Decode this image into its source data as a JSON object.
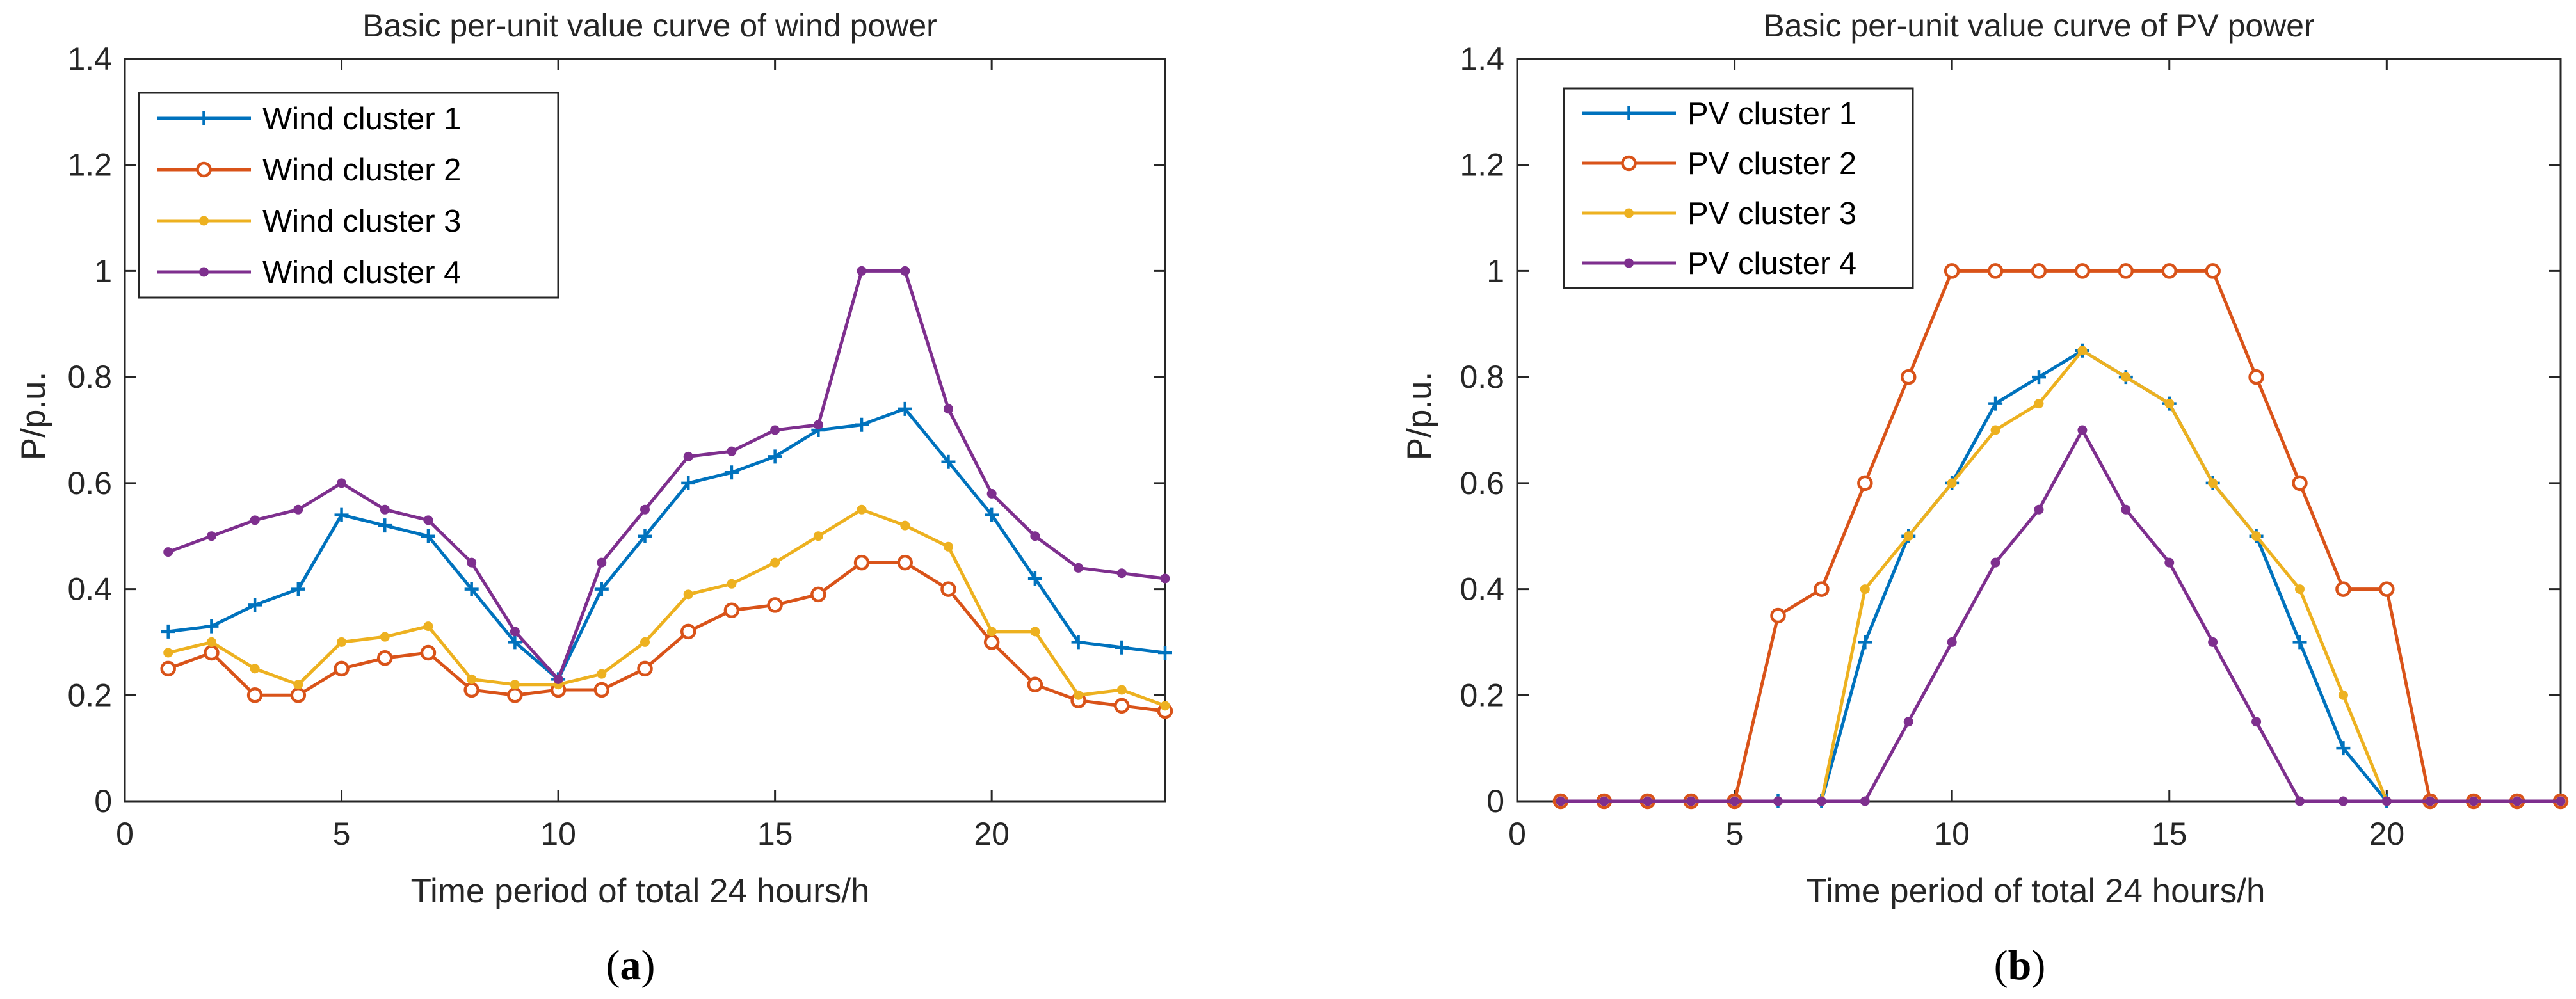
{
  "colors": {
    "series": [
      "#0072BD",
      "#D95319",
      "#EDB120",
      "#7E2F8E"
    ],
    "axis": "#262626",
    "background": "#ffffff"
  },
  "chart_data": [
    {
      "type": "line",
      "panel": "a",
      "title": "Basic per-unit value curve of wind power",
      "xlabel": "Time period of total 24 hours/h",
      "ylabel": "P/p.u.",
      "xlim": [
        0,
        24
      ],
      "ylim": [
        0,
        1.4
      ],
      "xticks": [
        0,
        5,
        10,
        15,
        20
      ],
      "xtick_labels": [
        "0",
        "5",
        "10",
        "15",
        "20"
      ],
      "yticks": [
        0,
        0.2,
        0.4,
        0.6,
        0.8,
        1,
        1.2,
        1.4
      ],
      "ytick_labels": [
        "0",
        "0.2",
        "0.4",
        "0.6",
        "0.8",
        "1",
        "1.2",
        "1.4"
      ],
      "legend_position": "top-left",
      "grid": false,
      "x": [
        1,
        2,
        3,
        4,
        5,
        6,
        7,
        8,
        9,
        10,
        11,
        12,
        13,
        14,
        15,
        16,
        17,
        18,
        19,
        20,
        21,
        22,
        23,
        24
      ],
      "series": [
        {
          "name": "Wind cluster 1",
          "marker": "plus",
          "values": [
            0.32,
            0.33,
            0.37,
            0.4,
            0.54,
            0.52,
            0.5,
            0.4,
            0.3,
            0.23,
            0.4,
            0.5,
            0.6,
            0.62,
            0.65,
            0.7,
            0.71,
            0.74,
            0.64,
            0.54,
            0.42,
            0.3,
            0.29,
            0.28
          ]
        },
        {
          "name": "Wind cluster 2",
          "marker": "circle",
          "values": [
            0.25,
            0.28,
            0.2,
            0.2,
            0.25,
            0.27,
            0.28,
            0.21,
            0.2,
            0.21,
            0.21,
            0.25,
            0.32,
            0.36,
            0.37,
            0.39,
            0.45,
            0.45,
            0.4,
            0.3,
            0.22,
            0.19,
            0.18,
            0.17
          ]
        },
        {
          "name": "Wind cluster 3",
          "marker": "dot",
          "values": [
            0.28,
            0.3,
            0.25,
            0.22,
            0.3,
            0.31,
            0.33,
            0.23,
            0.22,
            0.22,
            0.24,
            0.3,
            0.39,
            0.41,
            0.45,
            0.5,
            0.55,
            0.52,
            0.48,
            0.32,
            0.32,
            0.2,
            0.21,
            0.18
          ]
        },
        {
          "name": "Wind cluster 4",
          "marker": "dot",
          "values": [
            0.47,
            0.5,
            0.53,
            0.55,
            0.6,
            0.55,
            0.53,
            0.45,
            0.32,
            0.23,
            0.45,
            0.55,
            0.65,
            0.66,
            0.7,
            0.71,
            1.0,
            1.0,
            0.74,
            0.58,
            0.5,
            0.44,
            0.43,
            0.42
          ]
        }
      ]
    },
    {
      "type": "line",
      "panel": "b",
      "title": "Basic per-unit value curve of PV power",
      "xlabel": "Time period of total 24 hours/h",
      "ylabel": "P/p.u.",
      "xlim": [
        0,
        24
      ],
      "ylim": [
        0,
        1.4
      ],
      "xticks": [
        0,
        5,
        10,
        15,
        20
      ],
      "xtick_labels": [
        "0",
        "5",
        "10",
        "15",
        "20"
      ],
      "yticks": [
        0,
        0.2,
        0.4,
        0.6,
        0.8,
        1,
        1.2,
        1.4
      ],
      "ytick_labels": [
        "0",
        "0.2",
        "0.4",
        "0.6",
        "0.8",
        "1",
        "1.2",
        "1.4"
      ],
      "legend_position": "top-left",
      "grid": false,
      "x": [
        1,
        2,
        3,
        4,
        5,
        6,
        7,
        8,
        9,
        10,
        11,
        12,
        13,
        14,
        15,
        16,
        17,
        18,
        19,
        20,
        21,
        22,
        23,
        24
      ],
      "series": [
        {
          "name": "PV cluster 1",
          "marker": "plus",
          "values": [
            0,
            0,
            0,
            0,
            0,
            0,
            0,
            0.3,
            0.5,
            0.6,
            0.75,
            0.8,
            0.85,
            0.8,
            0.75,
            0.6,
            0.5,
            0.3,
            0.1,
            0,
            0,
            0,
            0,
            0
          ]
        },
        {
          "name": "PV cluster 2",
          "marker": "circle",
          "values": [
            0,
            0,
            0,
            0,
            0,
            0.35,
            0.4,
            0.6,
            0.8,
            1.0,
            1.0,
            1.0,
            1.0,
            1.0,
            1.0,
            1.0,
            0.8,
            0.6,
            0.4,
            0.4,
            0,
            0,
            0,
            0
          ]
        },
        {
          "name": "PV cluster 3",
          "marker": "dot",
          "values": [
            0,
            0,
            0,
            0,
            0,
            0,
            0,
            0.4,
            0.5,
            0.6,
            0.7,
            0.75,
            0.85,
            0.8,
            0.75,
            0.6,
            0.5,
            0.4,
            0.2,
            0,
            0,
            0,
            0,
            0
          ]
        },
        {
          "name": "PV cluster 4",
          "marker": "dot",
          "values": [
            0,
            0,
            0,
            0,
            0,
            0,
            0,
            0,
            0.15,
            0.3,
            0.45,
            0.55,
            0.7,
            0.55,
            0.45,
            0.3,
            0.15,
            0,
            0,
            0,
            0,
            0,
            0,
            0
          ]
        }
      ]
    }
  ],
  "panel_labels": [
    {
      "open": "(",
      "letter": "a",
      "close": ")"
    },
    {
      "open": "(",
      "letter": "b",
      "close": ")"
    }
  ]
}
